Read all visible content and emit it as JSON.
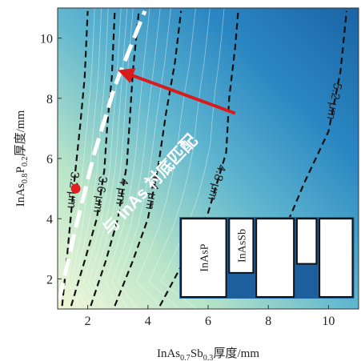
{
  "chart_data": {
    "type": "heatmap",
    "subtype": "filled-contour",
    "xlabel_parts": [
      {
        "text": "InAs",
        "sub": false
      },
      {
        "text": "0.7",
        "sub": true
      },
      {
        "text": "Sb",
        "sub": false
      },
      {
        "text": "0.3",
        "sub": true
      },
      {
        "text": "厚度/mm",
        "sub": false
      }
    ],
    "ylabel_parts": [
      {
        "text": "InAs",
        "sub": false
      },
      {
        "text": "0.8",
        "sub": true
      },
      {
        "text": "P",
        "sub": false
      },
      {
        "text": "0.2",
        "sub": true
      },
      {
        "text": "厚度/mm",
        "sub": false
      }
    ],
    "xlim": [
      1,
      11
    ],
    "ylim": [
      1,
      11
    ],
    "xticks": [
      2,
      4,
      6,
      8,
      10
    ],
    "yticks": [
      2,
      4,
      6,
      8,
      10
    ],
    "colorscale": [
      "#f0f7d8",
      "#b8e4c8",
      "#5fb6cf",
      "#2a86c2",
      "#1b63a4"
    ],
    "contours": [
      {
        "label": "3.2 μm",
        "points": [
          [
            1.15,
            1.1
          ],
          [
            1.3,
            2.6
          ],
          [
            1.45,
            4.2
          ],
          [
            1.6,
            5.7
          ],
          [
            1.75,
            7.1
          ],
          [
            1.9,
            8.7
          ],
          [
            2.0,
            10.9
          ]
        ]
      },
      {
        "label": "3.6 μm",
        "points": [
          [
            1.45,
            1.1
          ],
          [
            1.9,
            2.6
          ],
          [
            2.3,
            4.0
          ],
          [
            2.55,
            5.6
          ],
          [
            2.65,
            7.1
          ],
          [
            2.8,
            8.7
          ],
          [
            2.9,
            10.9
          ]
        ]
      },
      {
        "label": "4 μm",
        "points": [
          [
            2.1,
            1.1
          ],
          [
            2.6,
            2.6
          ],
          [
            3.0,
            4.0
          ],
          [
            3.3,
            5.8
          ],
          [
            3.4,
            7.3
          ],
          [
            3.5,
            8.9
          ],
          [
            3.7,
            10.9
          ]
        ]
      },
      {
        "label": "4.4 μm",
        "points": [
          [
            2.9,
            1.1
          ],
          [
            3.5,
            2.6
          ],
          [
            4.0,
            4.0
          ],
          [
            4.35,
            5.8
          ],
          [
            4.6,
            7.5
          ],
          [
            4.9,
            9.2
          ],
          [
            5.1,
            10.9
          ]
        ]
      },
      {
        "label": "4.8 μm",
        "points": [
          [
            4.4,
            1.1
          ],
          [
            5.2,
            2.6
          ],
          [
            6.0,
            4.2
          ],
          [
            6.6,
            6.2
          ],
          [
            6.7,
            8.0
          ],
          [
            6.9,
            9.7
          ],
          [
            7.0,
            10.9
          ]
        ]
      },
      {
        "label": "5.2 μm",
        "points": [
          [
            8.4,
            3.3
          ],
          [
            9.2,
            5.2
          ],
          [
            10.0,
            6.9
          ],
          [
            10.4,
            8.9
          ],
          [
            10.6,
            10.9
          ]
        ]
      }
    ],
    "matching_curve": [
      [
        1.05,
        1.3
      ],
      [
        1.6,
        3.7
      ],
      [
        2.2,
        6.1
      ],
      [
        2.9,
        8.4
      ],
      [
        3.9,
        10.9
      ]
    ],
    "marker": {
      "x": 1.6,
      "y": 5.0,
      "color": "#e02020"
    },
    "arrow": {
      "from": [
        6.9,
        7.5
      ],
      "to": [
        3.1,
        8.9
      ],
      "color": "#d81c1c"
    },
    "annotation": {
      "text": "与 InAs 衬底匹配",
      "anchor": [
        4.2,
        5.0
      ],
      "rotation": -47
    },
    "inset_blocks": [
      {
        "label": "InAsP",
        "x0": 5.1,
        "x1": 6.6,
        "y0": 1.4,
        "y1": 4.0
      },
      {
        "label": "InAsSb",
        "x0": 6.7,
        "x1": 7.5,
        "y0": 2.2,
        "y1": 4.0
      },
      {
        "label": "",
        "x0": 7.6,
        "x1": 8.85,
        "y0": 1.4,
        "y1": 4.0
      },
      {
        "label": "",
        "x0": 8.95,
        "x1": 9.6,
        "y0": 2.5,
        "y1": 4.0
      },
      {
        "label": "",
        "x0": 9.7,
        "x1": 10.8,
        "y0": 1.4,
        "y1": 4.0
      }
    ]
  }
}
